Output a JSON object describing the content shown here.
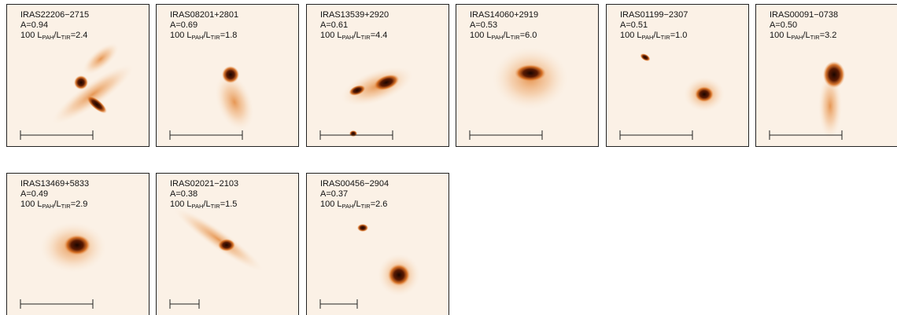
{
  "ratio_label": {
    "l1": "100 L",
    "pah": "PAH",
    "l2": "/L",
    "tir": "TIR"
  },
  "panels": [
    {
      "name": "IRAS22206−2715",
      "a": "A=0.94",
      "ratio": "=2.4"
    },
    {
      "name": "IRAS08201+2801",
      "a": "A=0.69",
      "ratio": "=1.8"
    },
    {
      "name": "IRAS13539+2920",
      "a": "A=0.61",
      "ratio": "=4.4"
    },
    {
      "name": "IRAS14060+2919",
      "a": "A=0.53",
      "ratio": "=6.0"
    },
    {
      "name": "IRAS01199−2307",
      "a": "A=0.51",
      "ratio": "=1.0"
    },
    {
      "name": "IRAS00091−0738",
      "a": "A=0.50",
      "ratio": "=3.2"
    },
    {
      "name": "IRAS13469+5833",
      "a": "A=0.49",
      "ratio": "=2.9"
    },
    {
      "name": "IRAS02021−2103",
      "a": "A=0.38",
      "ratio": "=1.5"
    },
    {
      "name": "IRAS00456−2904",
      "a": "A=0.37",
      "ratio": "=2.6"
    }
  ]
}
